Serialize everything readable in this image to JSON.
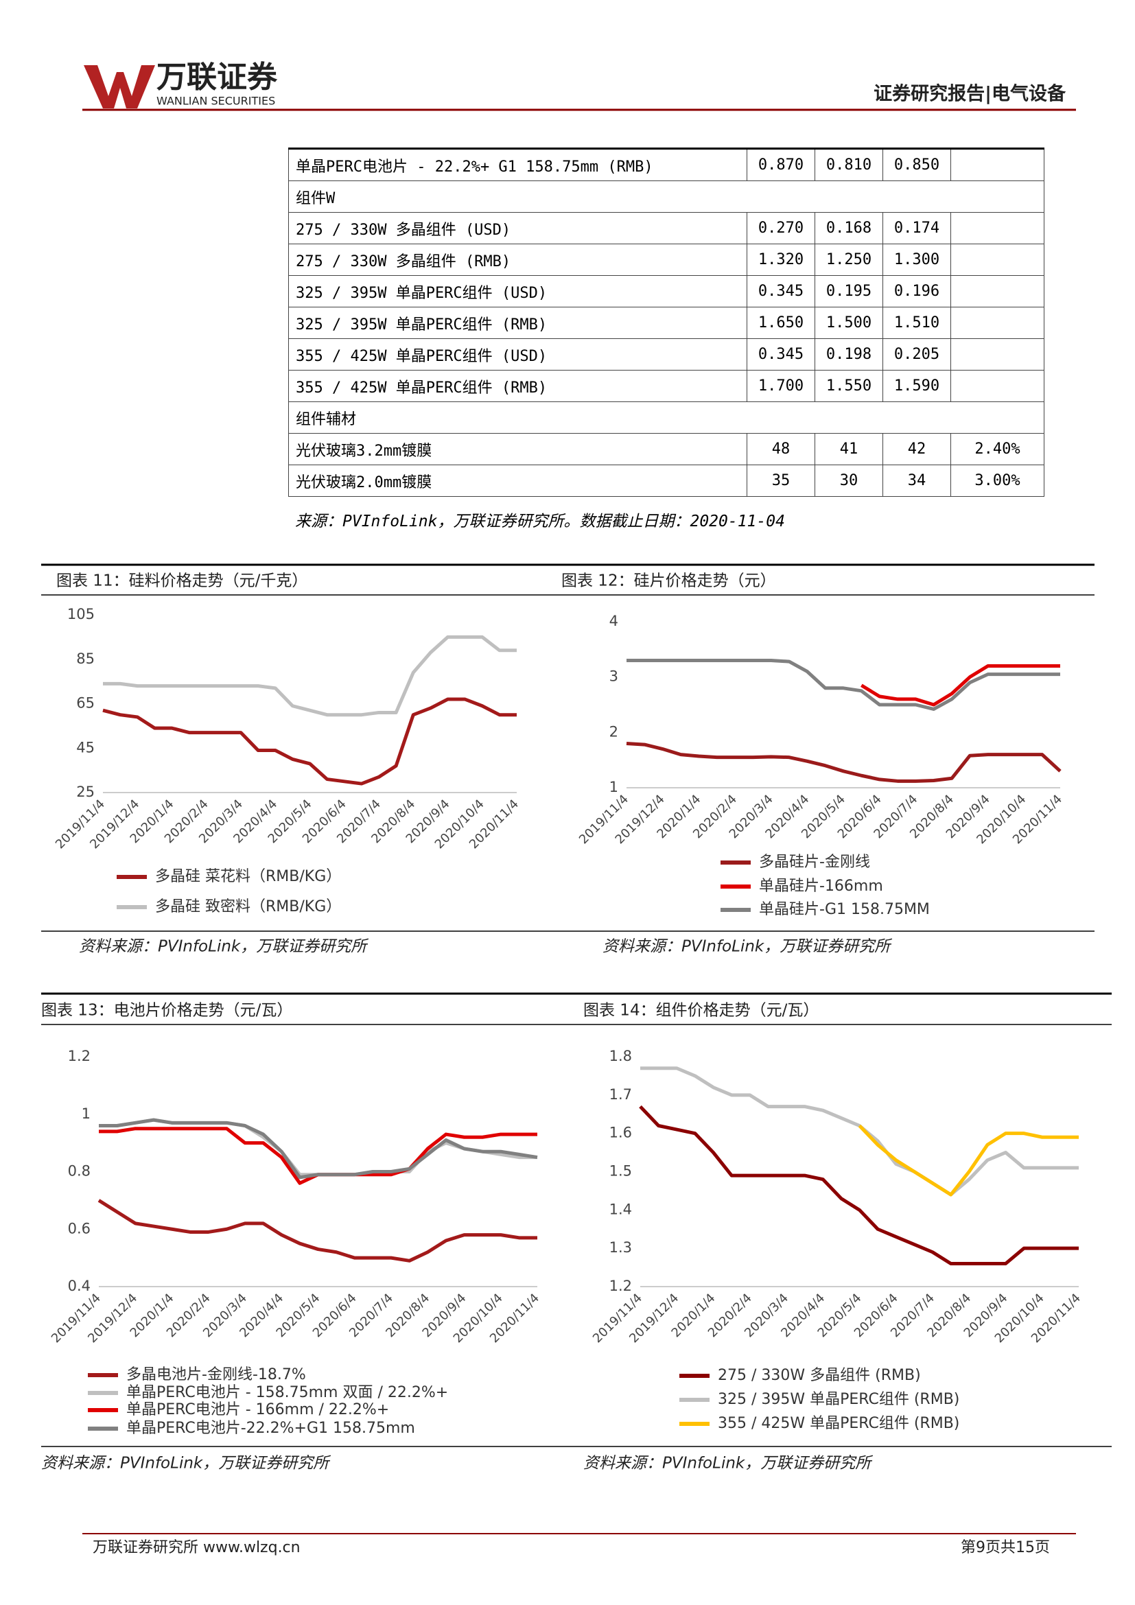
{
  "header": {
    "logo": "万联证券",
    "logo_en": "WANLIAN SECURITIES",
    "report_type": "证券研究报告|电气设备"
  },
  "table": {
    "rows": [
      {
        "cells": [
          "单晶PERC电池片 - 22.2%+ G1 158.75mm (RMB)",
          "0.870",
          "0.810",
          "0.850"
        ]
      },
      {
        "section": "组件W"
      },
      {
        "cells": [
          "275 / 330W 多晶组件 (USD)",
          "0.270",
          "0.168",
          "0.174"
        ]
      },
      {
        "cells": [
          "275 / 330W 多晶组件 (RMB)",
          "1.320",
          "1.250",
          "1.300"
        ]
      },
      {
        "cells": [
          "325 / 395W 单晶PERC组件 (USD)",
          "0.345",
          "0.195",
          "0.196"
        ]
      },
      {
        "cells": [
          "325 / 395W 单晶PERC组件 (RMB)",
          "1.650",
          "1.500",
          "1.510"
        ]
      },
      {
        "cells": [
          "355 / 425W 单晶PERC组件 (USD)",
          "0.345",
          "0.198",
          "0.205"
        ]
      },
      {
        "cells": [
          "355 / 425W 单晶PERC组件 (RMB)",
          "1.700",
          "1.550",
          "1.590"
        ]
      },
      {
        "section": "组件辅材"
      },
      {
        "cells": [
          "光伏玻璃3.2mm镀膜",
          "48",
          "41",
          "42",
          "2.40%"
        ]
      },
      {
        "cells": [
          "光伏玻璃2.0mm镀膜",
          "35",
          "30",
          "34",
          "3.00%"
        ]
      }
    ],
    "source": "来源：PVInfoLink，万联证券研究所。数据截止日期：2020-11-04"
  },
  "chart_data": [
    {
      "type": "line",
      "title": "图表 11：硅料价格走势（元/千克）",
      "source": "资料来源：PVInfoLink，万联证券研究所",
      "categories": [
        "2019/11/4",
        null,
        "2019/12/4",
        null,
        "2020/1/4",
        null,
        "2020/2/4",
        null,
        "2020/3/4",
        null,
        "2020/4/4",
        null,
        "2020/5/4",
        null,
        "2020/6/4",
        null,
        "2020/7/4",
        null,
        "2020/8/4",
        null,
        "2020/9/4",
        null,
        "2020/10/4",
        null,
        "2020/11/4"
      ],
      "ylim": [
        25,
        105
      ],
      "yticks": [
        25,
        45,
        65,
        85,
        105
      ],
      "grid": false,
      "series": [
        {
          "name": "多晶硅 菜花料（RMB/KG）",
          "color": "#a31a1a",
          "values": [
            62,
            60,
            59,
            54,
            54,
            52,
            52,
            52,
            52,
            44,
            44,
            40,
            38,
            31,
            30,
            29,
            32,
            37,
            60,
            63,
            67,
            67,
            64,
            60,
            60
          ]
        },
        {
          "name": "多晶硅 致密料（RMB/KG）",
          "color": "#bfbfbf",
          "values": [
            74,
            74,
            73,
            73,
            73,
            73,
            73,
            73,
            73,
            73,
            72,
            64,
            62,
            60,
            60,
            60,
            61,
            61,
            79,
            88,
            95,
            95,
            95,
            89,
            89
          ]
        }
      ]
    },
    {
      "type": "line",
      "title": "图表 12：硅片价格走势（元）",
      "source": "资料来源：PVInfoLink，万联证券研究所",
      "categories": [
        "2019/11/4",
        null,
        "2019/12/4",
        null,
        "2020/1/4",
        null,
        "2020/2/4",
        null,
        "2020/3/4",
        null,
        "2020/4/4",
        null,
        "2020/5/4",
        null,
        "2020/6/4",
        null,
        "2020/7/4",
        null,
        "2020/8/4",
        null,
        "2020/9/4",
        null,
        "2020/10/4",
        null,
        "2020/11/4"
      ],
      "ylim": [
        1,
        4
      ],
      "yticks": [
        1,
        2,
        3,
        4
      ],
      "grid": false,
      "series": [
        {
          "name": "多晶硅片-金刚线",
          "color": "#9b1b1b",
          "values": [
            1.8,
            1.78,
            1.7,
            1.6,
            1.57,
            1.55,
            1.55,
            1.55,
            1.56,
            1.55,
            1.48,
            1.4,
            1.3,
            1.22,
            1.15,
            1.12,
            1.12,
            1.13,
            1.17,
            1.58,
            1.6,
            1.6,
            1.6,
            1.6,
            1.3
          ]
        },
        {
          "name": "单晶硅片-166mm",
          "color": "#e00000",
          "values": [
            null,
            null,
            null,
            null,
            null,
            null,
            null,
            null,
            null,
            null,
            null,
            null,
            null,
            2.85,
            2.65,
            2.6,
            2.6,
            2.5,
            2.7,
            3.0,
            3.2,
            3.2,
            3.2,
            3.2,
            3.2
          ]
        },
        {
          "name": "单晶硅片-G1 158.75MM",
          "color": "#808080",
          "values": [
            3.3,
            3.3,
            3.3,
            3.3,
            3.3,
            3.3,
            3.3,
            3.3,
            3.3,
            3.28,
            3.1,
            2.8,
            2.8,
            2.75,
            2.5,
            2.5,
            2.5,
            2.42,
            2.6,
            2.9,
            3.05,
            3.05,
            3.05,
            3.05,
            3.05
          ]
        }
      ]
    },
    {
      "type": "line",
      "title": "图表 13：电池片价格走势（元/瓦）",
      "source": "资料来源：PVInfoLink，万联证券研究所",
      "categories": [
        "2019/11/4",
        null,
        "2019/12/4",
        null,
        "2020/1/4",
        null,
        "2020/2/4",
        null,
        "2020/3/4",
        null,
        "2020/4/4",
        null,
        "2020/5/4",
        null,
        "2020/6/4",
        null,
        "2020/7/4",
        null,
        "2020/8/4",
        null,
        "2020/9/4",
        null,
        "2020/10/4",
        null,
        "2020/11/4"
      ],
      "ylim": [
        0.4,
        1.2
      ],
      "yticks": [
        0.4,
        0.6,
        0.8,
        1,
        1.2
      ],
      "grid": false,
      "series": [
        {
          "name": "多晶电池片-金刚线-18.7%",
          "color": "#a31a1a",
          "values": [
            0.7,
            0.66,
            0.62,
            0.61,
            0.6,
            0.59,
            0.59,
            0.6,
            0.62,
            0.62,
            0.58,
            0.55,
            0.53,
            0.52,
            0.5,
            0.5,
            0.5,
            0.49,
            0.52,
            0.56,
            0.58,
            0.58,
            0.58,
            0.57,
            0.57
          ]
        },
        {
          "name": "单晶PERC电池片 - 158.75mm 双面 / 22.2%+",
          "color": "#bfbfbf",
          "values": [
            0.96,
            0.96,
            0.97,
            0.98,
            0.97,
            0.97,
            0.97,
            0.97,
            0.96,
            0.92,
            0.87,
            0.79,
            0.79,
            0.79,
            0.79,
            0.8,
            0.8,
            0.8,
            0.87,
            0.9,
            0.88,
            0.87,
            0.86,
            0.85,
            0.85
          ]
        },
        {
          "name": "单晶PERC电池片 - 166mm / 22.2%+",
          "color": "#e00000",
          "values": [
            0.94,
            0.94,
            0.95,
            0.95,
            0.95,
            0.95,
            0.95,
            0.95,
            0.9,
            0.9,
            0.85,
            0.76,
            0.79,
            0.79,
            0.79,
            0.79,
            0.79,
            0.81,
            0.88,
            0.93,
            0.92,
            0.92,
            0.93,
            0.93,
            0.93
          ]
        },
        {
          "name": "单晶PERC电池片-22.2%+G1 158.75mm",
          "color": "#808080",
          "values": [
            0.96,
            0.96,
            0.97,
            0.98,
            0.97,
            0.97,
            0.97,
            0.97,
            0.96,
            0.93,
            0.87,
            0.78,
            0.79,
            0.79,
            0.79,
            0.8,
            0.8,
            0.81,
            0.86,
            0.91,
            0.88,
            0.87,
            0.87,
            0.86,
            0.85
          ]
        }
      ]
    },
    {
      "type": "line",
      "title": "图表 14：组件价格走势（元/瓦）",
      "source": "资料来源：PVInfoLink，万联证券研究所",
      "categories": [
        "2019/11/4",
        null,
        "2019/12/4",
        null,
        "2020/1/4",
        null,
        "2020/2/4",
        null,
        "2020/3/4",
        null,
        "2020/4/4",
        null,
        "2020/5/4",
        null,
        "2020/6/4",
        null,
        "2020/7/4",
        null,
        "2020/8/4",
        null,
        "2020/9/4",
        null,
        "2020/10/4",
        null,
        "2020/11/4"
      ],
      "ylim": [
        1.2,
        1.8
      ],
      "yticks": [
        1.2,
        1.3,
        1.4,
        1.5,
        1.6,
        1.7,
        1.8
      ],
      "grid": false,
      "series": [
        {
          "name": "275 / 330W 多晶组件 (RMB)",
          "color": "#8b0000",
          "values": [
            1.67,
            1.62,
            1.61,
            1.6,
            1.55,
            1.49,
            1.49,
            1.49,
            1.49,
            1.49,
            1.48,
            1.43,
            1.4,
            1.35,
            1.33,
            1.31,
            1.29,
            1.26,
            1.26,
            1.26,
            1.26,
            1.3,
            1.3,
            1.3,
            1.3
          ]
        },
        {
          "name": "325 / 395W 单晶PERC组件 (RMB)",
          "color": "#bfbfbf",
          "values": [
            1.77,
            1.77,
            1.77,
            1.75,
            1.72,
            1.7,
            1.7,
            1.67,
            1.67,
            1.67,
            1.66,
            1.64,
            1.62,
            1.58,
            1.52,
            1.5,
            1.47,
            1.44,
            1.48,
            1.53,
            1.55,
            1.51,
            1.51,
            1.51,
            1.51
          ]
        },
        {
          "name": "355 / 425W 单晶PERC组件 (RMB)",
          "color": "#ffc000",
          "values": [
            null,
            null,
            null,
            null,
            null,
            null,
            null,
            null,
            null,
            null,
            null,
            null,
            1.62,
            1.57,
            1.53,
            1.5,
            1.47,
            1.44,
            1.5,
            1.57,
            1.6,
            1.6,
            1.59,
            1.59,
            1.59
          ]
        }
      ]
    }
  ],
  "footer": {
    "left": "万联证券研究所 www.wlzq.cn",
    "page": "第9页共15页"
  }
}
